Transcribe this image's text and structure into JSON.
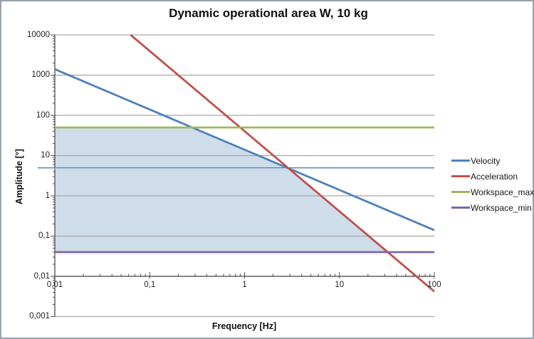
{
  "chart_data": {
    "type": "line",
    "title": "Dynamic operational area W, 10 kg",
    "xlabel": "Frequency [Hz]",
    "ylabel": "Amplitude [°]",
    "x_scale": "log",
    "y_scale": "log",
    "xlim": [
      0.01,
      100
    ],
    "ylim": [
      0.001,
      10000
    ],
    "x_axis_cross": 0.01,
    "grid": "horizontal-major-only",
    "gridline_color": "#a6a6a6",
    "axis_color": "#4d4d4d",
    "legend_position": "right",
    "x_ticks": [
      {
        "value": 0.01,
        "label": "0,01"
      },
      {
        "value": 0.1,
        "label": "0,1"
      },
      {
        "value": 1,
        "label": "1"
      },
      {
        "value": 10,
        "label": "10"
      },
      {
        "value": 100,
        "label": "100"
      }
    ],
    "y_ticks": [
      {
        "value": 10000,
        "label": "10000"
      },
      {
        "value": 1000,
        "label": "1000"
      },
      {
        "value": 100,
        "label": "100"
      },
      {
        "value": 10,
        "label": "10"
      },
      {
        "value": 1,
        "label": "1"
      },
      {
        "value": 0.1,
        "label": "0,1"
      },
      {
        "value": 0.01,
        "label": "0,01"
      },
      {
        "value": 0.001,
        "label": "0,001"
      }
    ],
    "series": [
      {
        "name": "Velocity",
        "color": "#4F81BD",
        "points": [
          [
            0.01,
            1400
          ],
          [
            100,
            0.14
          ]
        ]
      },
      {
        "name": "Acceleration",
        "color": "#C0504D",
        "points": [
          [
            0.063,
            10000
          ],
          [
            100,
            0.0042
          ]
        ]
      },
      {
        "name": "Workspace_max",
        "color": "#9BBB59",
        "points": [
          [
            0.01,
            50
          ],
          [
            100,
            50
          ]
        ]
      },
      {
        "name": "Workspace_min",
        "color": "#8064A2",
        "points": [
          [
            0.01,
            0.04
          ],
          [
            100,
            0.04
          ]
        ]
      }
    ],
    "reference_line": {
      "value": 5,
      "color": "#5b87b0",
      "highlight_color": "#b7cfe5"
    },
    "shaded_area": {
      "label": "Dynamic operational area W",
      "fill": "#CFDCEA",
      "vertices": [
        [
          0.01,
          0.04
        ],
        [
          0.01,
          50
        ],
        [
          0.28,
          50
        ],
        [
          3.0,
          4.67
        ],
        [
          32.4,
          0.04
        ]
      ]
    }
  },
  "frame": {
    "border_color": "#96a3b0",
    "background": "#ffffff"
  }
}
